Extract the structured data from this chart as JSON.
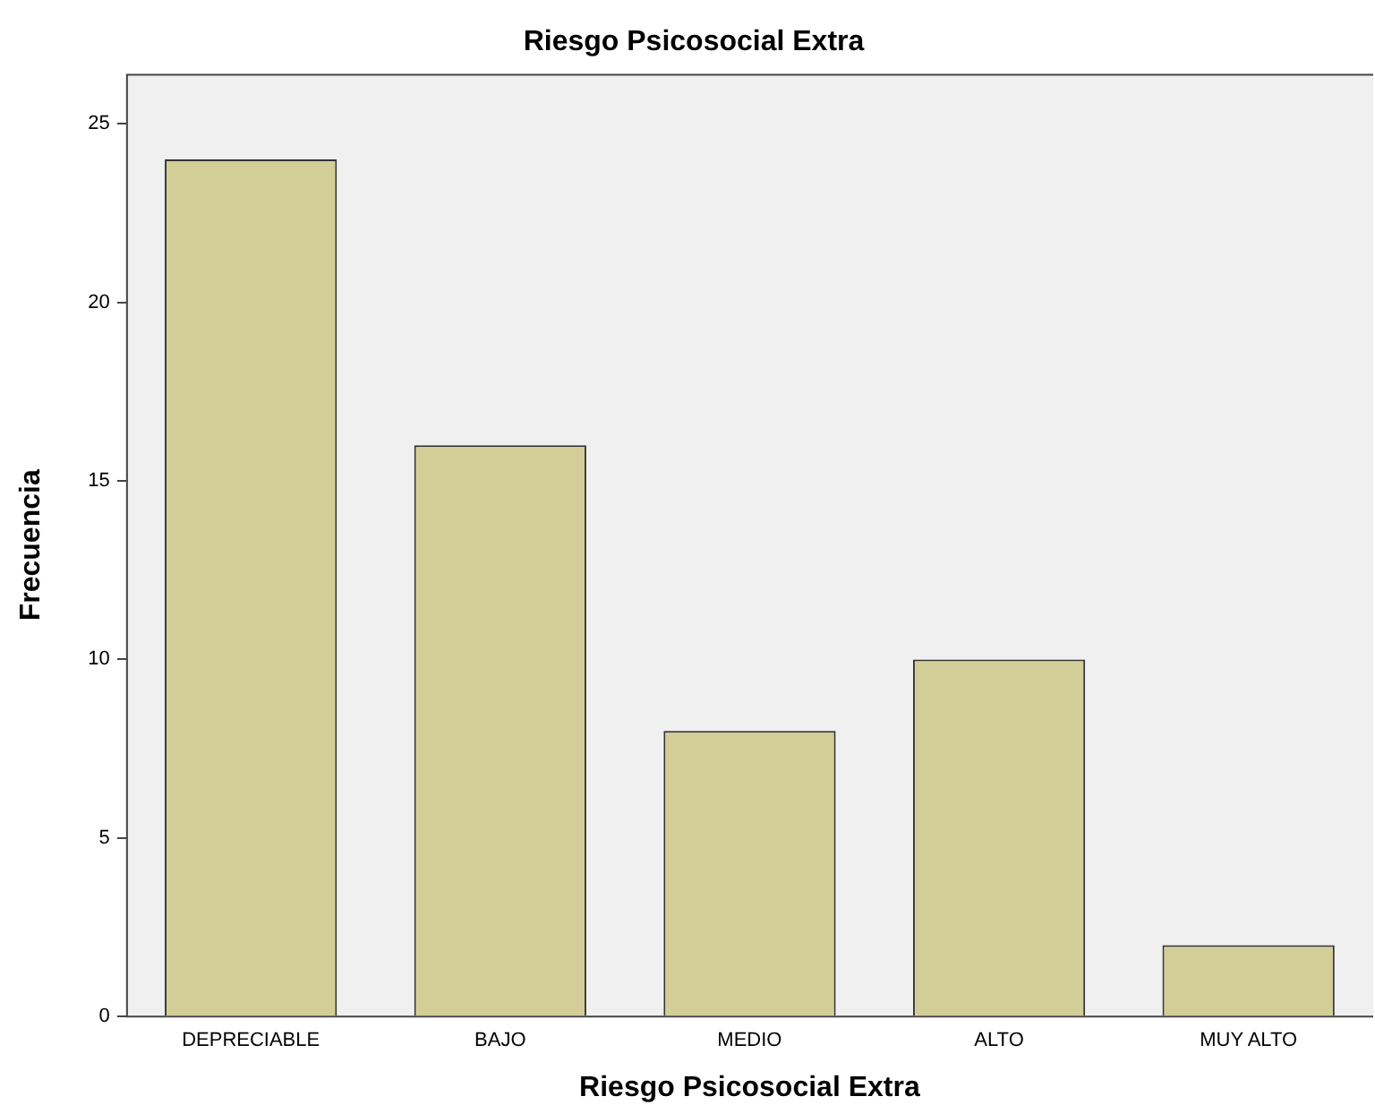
{
  "chart_data": {
    "type": "bar",
    "title": "Riesgo Psicosocial Extra",
    "xlabel": "Riesgo Psicosocial Extra",
    "ylabel": "Frecuencia",
    "categories": [
      "DEPRECIABLE",
      "BAJO",
      "MEDIO",
      "ALTO",
      "MUY ALTO"
    ],
    "values": [
      24,
      16,
      8,
      10,
      2
    ],
    "color": "#d3ce97",
    "ylim": [
      0,
      26.4
    ],
    "yticks": [
      0,
      5,
      10,
      15,
      20,
      25
    ],
    "grid": false,
    "legend": false
  }
}
